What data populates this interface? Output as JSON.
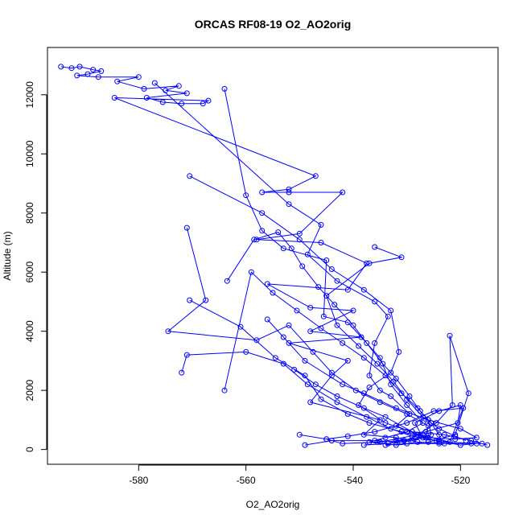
{
  "chart_data": {
    "type": "line",
    "title": "ORCAS RF08-19 O2_AO2orig",
    "xlabel": "O2_AO2orig",
    "ylabel": "Altitude (m)",
    "xlim": [
      -597,
      -513
    ],
    "ylim": [
      -500,
      13600
    ],
    "x_ticks": [
      -580,
      -560,
      -540,
      -520
    ],
    "x_tick_labels": [
      "-580",
      "-560",
      "-540",
      "-520"
    ],
    "y_ticks": [
      0,
      2000,
      4000,
      6000,
      8000,
      10000,
      12000
    ],
    "y_tick_labels": [
      "0",
      "2000",
      "4000",
      "6000",
      "8000",
      "10000",
      "12000"
    ],
    "grid": false,
    "colors": {
      "series": "#0000ff"
    },
    "series": [
      {
        "style": "lines+open-circles",
        "points": [
          [
            -594.5,
            12950
          ],
          [
            -592.5,
            12900
          ],
          [
            -591.0,
            12950
          ],
          [
            -588.5,
            12850
          ],
          [
            -587.0,
            12800
          ],
          [
            -589.5,
            12700
          ],
          [
            -591.5,
            12650
          ],
          [
            -587.5,
            12600
          ],
          [
            -580.0,
            12600
          ],
          [
            -584.0,
            12450
          ],
          [
            -579.0,
            12200
          ],
          [
            -572.5,
            12300
          ],
          [
            -575.0,
            12150
          ],
          [
            -571.0,
            12050
          ],
          [
            -578.5,
            11900
          ],
          [
            -575.5,
            11750
          ],
          [
            -572.0,
            11700
          ],
          [
            -568.0,
            11700
          ],
          [
            -567.0,
            11800
          ],
          [
            -584.5,
            11900
          ],
          [
            -547.0,
            9250
          ],
          [
            -552.0,
            8800
          ],
          [
            -557.0,
            8700
          ],
          [
            -552.0,
            8700
          ],
          [
            -542.0,
            8700
          ],
          [
            -550.0,
            7300
          ],
          [
            -558.0,
            7100
          ],
          [
            -546.0,
            7000
          ],
          [
            -537.5,
            6300
          ],
          [
            -541.0,
            5400
          ],
          [
            -556.0,
            5600
          ],
          [
            -548.0,
            4800
          ],
          [
            -540.0,
            4700
          ],
          [
            -548.0,
            4000
          ],
          [
            -538.5,
            3800
          ],
          [
            -552.0,
            3600
          ],
          [
            -541.0,
            3000
          ],
          [
            -544.0,
            2500
          ],
          [
            -548.0,
            1600
          ],
          [
            -535.0,
            1000
          ],
          [
            -538.0,
            500
          ],
          [
            -532.0,
            400
          ],
          [
            -528.0,
            250
          ],
          [
            -523.0,
            200
          ],
          [
            -518.0,
            200
          ],
          [
            -524.0,
            200
          ],
          [
            -530.0,
            200
          ],
          [
            -534.0,
            150
          ],
          [
            -532.0,
            300
          ],
          [
            -527.0,
            400
          ],
          [
            -528.5,
            900
          ],
          [
            -524.0,
            1300
          ],
          [
            -520.0,
            1500
          ],
          [
            -520.5,
            900
          ],
          [
            -526.5,
            600
          ],
          [
            -531.0,
            250
          ],
          [
            -536.0,
            300
          ],
          [
            -544.0,
            300
          ],
          [
            -549.0,
            150
          ]
        ]
      },
      {
        "style": "lines+open-circles",
        "points": [
          [
            -564.0,
            12200
          ],
          [
            -560.0,
            8600
          ],
          [
            -557.0,
            7400
          ],
          [
            -553.0,
            6800
          ],
          [
            -545.0,
            6400
          ],
          [
            -545.5,
            4500
          ],
          [
            -541.0,
            4300
          ],
          [
            -535.0,
            3100
          ],
          [
            -533.0,
            2200
          ],
          [
            -530.0,
            1500
          ],
          [
            -527.0,
            900
          ],
          [
            -530.0,
            600
          ],
          [
            -534.0,
            400
          ],
          [
            -537.0,
            250
          ],
          [
            -532.0,
            150
          ],
          [
            -526.0,
            250
          ],
          [
            -521.0,
            500
          ],
          [
            -518.5,
            1900
          ],
          [
            -522.0,
            3850
          ],
          [
            -521.5,
            1500
          ],
          [
            -524.5,
            900
          ],
          [
            -528.0,
            500
          ],
          [
            -535.0,
            250
          ],
          [
            -542.0,
            200
          ],
          [
            -545.0,
            350
          ]
        ]
      },
      {
        "style": "lines+open-circles",
        "points": [
          [
            -577.0,
            12400
          ],
          [
            -552.0,
            8300
          ],
          [
            -546.0,
            7600
          ],
          [
            -548.5,
            6600
          ],
          [
            -543.0,
            5700
          ],
          [
            -536.0,
            5000
          ],
          [
            -533.5,
            4500
          ],
          [
            -536.0,
            3600
          ],
          [
            -537.0,
            2500
          ],
          [
            -535.0,
            2000
          ],
          [
            -533.0,
            1800
          ],
          [
            -529.5,
            1200
          ],
          [
            -532.0,
            800
          ],
          [
            -528.0,
            500
          ],
          [
            -524.0,
            250
          ],
          [
            -516.0,
            200
          ],
          [
            -515.0,
            150
          ],
          [
            -518.0,
            300
          ],
          [
            -523.0,
            500
          ],
          [
            -529.0,
            600
          ],
          [
            -534.0,
            1100
          ],
          [
            -538.0,
            1400
          ],
          [
            -543.0,
            1800
          ],
          [
            -547.0,
            2200
          ],
          [
            -551.0,
            2700
          ]
        ]
      },
      {
        "style": "lines+open-circles",
        "points": [
          [
            -570.5,
            9250
          ],
          [
            -557.0,
            8000
          ],
          [
            -550.0,
            7100
          ],
          [
            -544.0,
            6100
          ],
          [
            -538.0,
            5400
          ],
          [
            -533.0,
            4700
          ],
          [
            -531.5,
            3300
          ],
          [
            -533.0,
            2600
          ],
          [
            -537.0,
            2100
          ],
          [
            -539.0,
            1500
          ],
          [
            -534.0,
            900
          ],
          [
            -527.5,
            500
          ],
          [
            -522.0,
            250
          ],
          [
            -519.5,
            1400
          ],
          [
            -525.0,
            1300
          ],
          [
            -530.0,
            900
          ],
          [
            -536.0,
            600
          ],
          [
            -541.0,
            450
          ],
          [
            -545.0,
            350
          ],
          [
            -550.0,
            500
          ]
        ]
      },
      {
        "style": "lines+open-circles",
        "points": [
          [
            -571.0,
            7500
          ],
          [
            -567.5,
            5050
          ],
          [
            -574.5,
            4000
          ],
          [
            -558.0,
            3700
          ],
          [
            -552.0,
            4200
          ],
          [
            -547.5,
            3300
          ],
          [
            -544.0,
            2600
          ],
          [
            -539.5,
            2000
          ],
          [
            -535.0,
            1600
          ],
          [
            -530.0,
            1200
          ],
          [
            -526.0,
            800
          ],
          [
            -526.5,
            400
          ],
          [
            -530.5,
            300
          ],
          [
            -535.5,
            250
          ]
        ]
      },
      {
        "style": "lines+open-circles",
        "points": [
          [
            -570.5,
            5050
          ],
          [
            -561.0,
            4150
          ],
          [
            -554.5,
            3100
          ],
          [
            -549.0,
            2500
          ],
          [
            -546.0,
            1700
          ],
          [
            -541.0,
            1200
          ],
          [
            -537.0,
            900
          ],
          [
            -531.0,
            600
          ],
          [
            -526.0,
            400
          ],
          [
            -521.0,
            350
          ],
          [
            -517.0,
            400
          ],
          [
            -520.0,
            700
          ],
          [
            -526.0,
            1000
          ],
          [
            -532.0,
            1400
          ],
          [
            -538.0,
            1900
          ],
          [
            -542.0,
            2200
          ],
          [
            -549.0,
            3000
          ],
          [
            -553.0,
            3800
          ],
          [
            -556.0,
            4400
          ]
        ]
      },
      {
        "style": "lines+open-circles",
        "points": [
          [
            -572.0,
            2600
          ],
          [
            -571.0,
            3200
          ],
          [
            -560.0,
            3300
          ],
          [
            -553.0,
            2900
          ],
          [
            -548.5,
            2200
          ],
          [
            -543.0,
            1600
          ],
          [
            -537.5,
            1100
          ],
          [
            -533.0,
            700
          ],
          [
            -529.0,
            450
          ],
          [
            -524.5,
            300
          ],
          [
            -520.0,
            150
          ],
          [
            -517.0,
            200
          ]
        ]
      },
      {
        "style": "lines+open-circles",
        "points": [
          [
            -564.0,
            2000
          ],
          [
            -559.0,
            6000
          ],
          [
            -555.0,
            5300
          ],
          [
            -550.5,
            4700
          ],
          [
            -546.0,
            4100
          ],
          [
            -542.0,
            3600
          ],
          [
            -538.0,
            3100
          ],
          [
            -534.0,
            2500
          ],
          [
            -531.0,
            1900
          ],
          [
            -528.0,
            1400
          ],
          [
            -526.0,
            1000
          ],
          [
            -525.5,
            500
          ],
          [
            -529.0,
            300
          ],
          [
            -533.5,
            200
          ],
          [
            -538.0,
            150
          ]
        ]
      },
      {
        "style": "lines+open-circles",
        "points": [
          [
            -536.0,
            6850
          ],
          [
            -531.0,
            6500
          ],
          [
            -537.0,
            6300
          ],
          [
            -545.0,
            5200
          ],
          [
            -543.0,
            4200
          ],
          [
            -539.0,
            3500
          ],
          [
            -535.5,
            2900
          ],
          [
            -532.5,
            2300
          ],
          [
            -530.0,
            1700
          ],
          [
            -527.0,
            1100
          ],
          [
            -524.0,
            700
          ],
          [
            -521.0,
            450
          ],
          [
            -519.0,
            300
          ]
        ]
      },
      {
        "style": "lines+open-circles",
        "points": [
          [
            -563.5,
            5700
          ],
          [
            -558.5,
            7100
          ],
          [
            -554.0,
            7350
          ],
          [
            -551.5,
            6800
          ],
          [
            -549.5,
            6200
          ],
          [
            -546.5,
            5500
          ],
          [
            -543.5,
            4900
          ],
          [
            -540.0,
            4200
          ],
          [
            -537.5,
            3600
          ],
          [
            -534.5,
            2900
          ],
          [
            -532.0,
            2400
          ],
          [
            -529.5,
            1800
          ],
          [
            -527.5,
            1300
          ],
          [
            -525.5,
            900
          ],
          [
            -524.0,
            500
          ],
          [
            -523.5,
            250
          ]
        ]
      }
    ]
  }
}
